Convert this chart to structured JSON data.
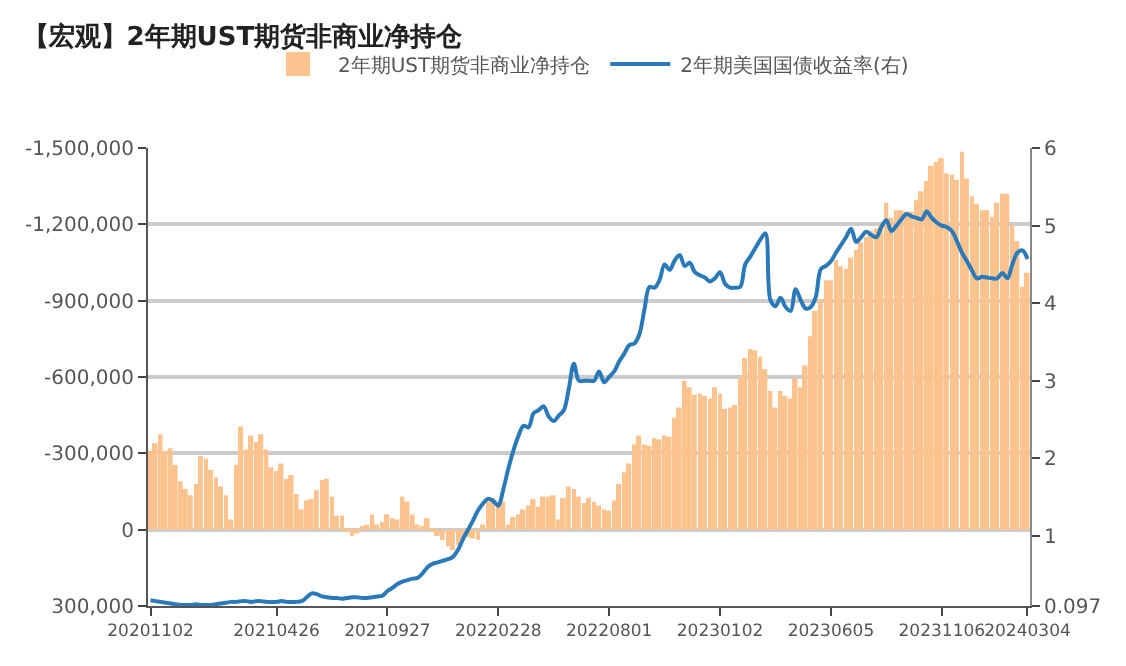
{
  "chart_data": {
    "type": "bar",
    "title": "【宏观】2年期UST期货非商业净持仓",
    "categories": [
      "20201102",
      null,
      null,
      null,
      null,
      null,
      null,
      null,
      null,
      null,
      null,
      null,
      null,
      null,
      null,
      null,
      null,
      null,
      null,
      null,
      null,
      null,
      null,
      null,
      null,
      "20210426",
      null,
      null,
      null,
      null,
      null,
      null,
      null,
      null,
      null,
      null,
      null,
      null,
      null,
      null,
      null,
      null,
      null,
      null,
      null,
      null,
      null,
      "20210927",
      null,
      null,
      null,
      null,
      null,
      null,
      null,
      null,
      null,
      null,
      null,
      null,
      null,
      null,
      null,
      null,
      null,
      null,
      null,
      null,
      null,
      "20220228",
      null,
      null,
      null,
      null,
      null,
      null,
      null,
      null,
      null,
      null,
      null,
      null,
      null,
      null,
      null,
      null,
      null,
      null,
      null,
      null,
      null,
      "20220801",
      null,
      null,
      null,
      null,
      null,
      null,
      null,
      null,
      null,
      null,
      null,
      null,
      null,
      null,
      null,
      null,
      null,
      null,
      null,
      null,
      null,
      "20230102",
      null,
      null,
      null,
      null,
      null,
      null,
      null,
      null,
      null,
      null,
      null,
      null,
      null,
      null,
      null,
      null,
      null,
      null,
      null,
      null,
      null,
      "20230605",
      null,
      null,
      null,
      null,
      null,
      null,
      null,
      null,
      null,
      null,
      null,
      null,
      null,
      null,
      null,
      null,
      null,
      null,
      null,
      null,
      null,
      "20231106",
      null,
      null,
      null,
      null,
      null,
      null,
      null,
      null,
      null,
      null,
      null,
      null,
      null,
      null,
      null,
      null,
      "20240304"
    ],
    "series": [
      {
        "name": "2年期UST期货非商业净持仓",
        "color": "#fdc38e",
        "values": [
          -310000,
          -340000,
          -375000,
          -310000,
          -320000,
          -255000,
          -190000,
          -160000,
          -135000,
          -180000,
          -290000,
          -280000,
          -235000,
          -205000,
          -170000,
          -135000,
          -40000,
          -255000,
          -405000,
          -315000,
          -370000,
          -345000,
          -375000,
          -315000,
          -245000,
          -230000,
          -260000,
          -200000,
          -215000,
          -140000,
          -80000,
          -115000,
          -120000,
          -155000,
          -195000,
          -200000,
          -130000,
          -55000,
          -55000,
          10000,
          25000,
          15000,
          -10000,
          -20000,
          -60000,
          -20000,
          -30000,
          -60000,
          -45000,
          -40000,
          -130000,
          -110000,
          -60000,
          -20000,
          -10000,
          -45000,
          5000,
          25000,
          40000,
          65000,
          80000,
          60000,
          40000,
          30000,
          35000,
          40000,
          -20000,
          -110000,
          -125000,
          -110000,
          -110000,
          -20000,
          -50000,
          -60000,
          -80000,
          -95000,
          -120000,
          -90000,
          -130000,
          -130000,
          -135000,
          -40000,
          -125000,
          -170000,
          -160000,
          -130000,
          -105000,
          -125000,
          -110000,
          -95000,
          -80000,
          -75000,
          -115000,
          -180000,
          -225000,
          -260000,
          -335000,
          -370000,
          -335000,
          -330000,
          -360000,
          -355000,
          -370000,
          -365000,
          -440000,
          -480000,
          -585000,
          -560000,
          -530000,
          -535000,
          -525000,
          -515000,
          -560000,
          -535000,
          -475000,
          -480000,
          -490000,
          -595000,
          -675000,
          -710000,
          -705000,
          -680000,
          -630000,
          -545000,
          -480000,
          -545000,
          -525000,
          -515000,
          -595000,
          -560000,
          -645000,
          -760000,
          -860000,
          -905000,
          -980000,
          -980000,
          -1060000,
          -1035000,
          -1025000,
          -1070000,
          -1100000,
          -1130000,
          -1150000,
          -1175000,
          -1185000,
          -1200000,
          -1285000,
          -1225000,
          -1255000,
          -1255000,
          -1250000,
          -1250000,
          -1295000,
          -1330000,
          -1370000,
          -1430000,
          -1445000,
          -1460000,
          -1400000,
          -1395000,
          -1375000,
          -1485000,
          -1380000,
          -1310000,
          -1280000,
          -1255000,
          -1255000,
          -1230000,
          -1285000,
          -1320000,
          -1320000,
          -1195000,
          -1135000,
          -955000,
          -1010000
        ]
      },
      {
        "name": "2年期美国国债收益率(右)",
        "type": "line",
        "axis": "y2",
        "color": "#2a7ab9",
        "values": [
          0.17,
          0.16,
          0.15,
          0.14,
          0.13,
          0.12,
          0.11,
          0.11,
          0.11,
          0.12,
          0.11,
          0.11,
          0.11,
          0.12,
          0.13,
          0.14,
          0.15,
          0.15,
          0.16,
          0.16,
          0.15,
          0.16,
          0.16,
          0.15,
          0.15,
          0.15,
          0.16,
          0.15,
          0.15,
          0.15,
          0.16,
          0.21,
          0.26,
          0.25,
          0.22,
          0.21,
          0.2,
          0.2,
          0.19,
          0.2,
          0.21,
          0.21,
          0.2,
          0.2,
          0.21,
          0.22,
          0.23,
          0.29,
          0.33,
          0.38,
          0.41,
          0.43,
          0.45,
          0.46,
          0.52,
          0.6,
          0.64,
          0.66,
          0.68,
          0.7,
          0.73,
          0.82,
          0.96,
          1.08,
          1.2,
          1.33,
          1.42,
          1.48,
          1.45,
          1.39,
          1.6,
          1.87,
          2.1,
          2.29,
          2.42,
          2.4,
          2.58,
          2.62,
          2.67,
          2.54,
          2.48,
          2.55,
          2.62,
          2.9,
          3.22,
          3.0,
          3.0,
          3.0,
          3.0,
          3.12,
          2.98,
          3.05,
          3.12,
          3.25,
          3.35,
          3.46,
          3.48,
          3.6,
          3.92,
          4.21,
          4.2,
          4.3,
          4.5,
          4.43,
          4.55,
          4.62,
          4.48,
          4.52,
          4.4,
          4.36,
          4.33,
          4.28,
          4.32,
          4.4,
          4.25,
          4.2,
          4.2,
          4.21,
          4.5,
          4.6,
          4.71,
          4.82,
          4.9,
          4.04,
          3.96,
          4.07,
          3.95,
          3.9,
          4.18,
          4.04,
          3.93,
          3.95,
          4.08,
          4.44,
          4.48,
          4.54,
          4.65,
          4.75,
          4.85,
          4.96,
          4.79,
          4.85,
          4.92,
          4.88,
          4.85,
          4.98,
          5.07,
          4.93,
          5.0,
          5.08,
          5.15,
          5.12,
          5.1,
          5.08,
          5.18,
          5.1,
          5.04,
          5.0,
          4.98,
          4.93,
          4.8,
          4.65,
          4.54,
          4.42,
          4.32,
          4.34,
          4.33,
          4.32,
          4.32,
          4.39,
          4.32,
          4.5,
          4.65,
          4.68,
          4.57
        ]
      }
    ],
    "ylim": [
      300000,
      -1500000
    ],
    "yticks": [
      {
        "value": -1500000,
        "label": "-1,500,000"
      },
      {
        "value": -1200000,
        "label": "-1,200,000"
      },
      {
        "value": -900000,
        "label": "-900,000"
      },
      {
        "value": -600000,
        "label": "-600,000"
      },
      {
        "value": -300000,
        "label": "-300,000"
      },
      0,
      {
        "value": 300000,
        "label": "300,000"
      }
    ],
    "y2lim": [
      0.097,
      6
    ],
    "y2ticks": [
      0.097,
      1,
      2,
      3,
      4,
      5,
      6
    ],
    "grid": "y",
    "legend": "top"
  }
}
